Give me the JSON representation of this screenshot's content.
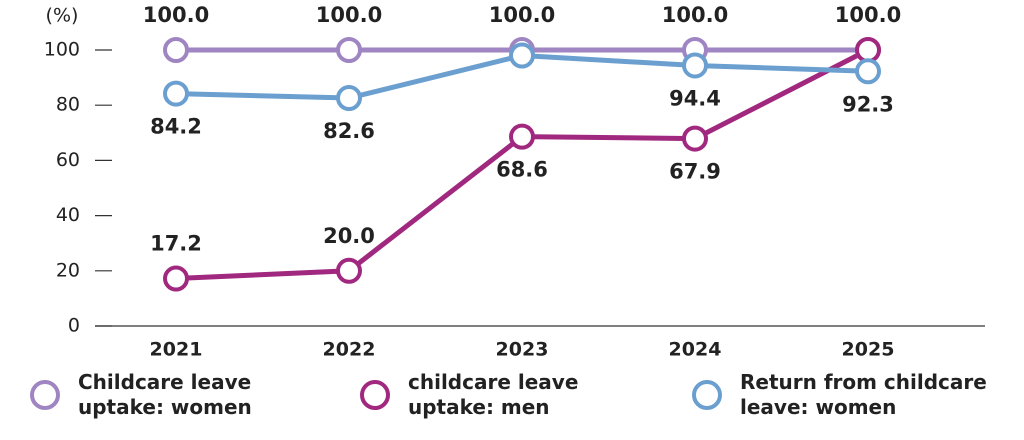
{
  "chart_data": {
    "type": "line",
    "y_unit": "(%)",
    "categories": [
      "2021",
      "2022",
      "2023",
      "2024",
      "2025"
    ],
    "series": [
      {
        "name": "Childcare leave uptake: women",
        "color": "#9f85c2",
        "values": [
          100,
          100,
          100,
          100,
          100
        ],
        "value_labels": [
          "100.0",
          "100.0",
          "100.0",
          "100.0",
          "100.0"
        ]
      },
      {
        "name": "childcare leave uptake: men",
        "color": "#a1287f",
        "values": [
          17.2,
          20,
          68.6,
          67.9,
          100
        ],
        "value_labels": [
          "17.2",
          "20.0",
          "68.6",
          "67.9",
          null
        ]
      },
      {
        "name": "Return from childcare leave: women",
        "color": "#6a9fd0",
        "values": [
          84.2,
          82.6,
          98,
          94.4,
          92.3
        ],
        "value_labels": [
          "84.2",
          "82.6",
          null,
          "94.4",
          "92.3"
        ]
      }
    ],
    "ylim": [
      0,
      100
    ],
    "yticks": [
      0,
      20,
      40,
      60,
      80,
      100
    ],
    "grid": false
  }
}
